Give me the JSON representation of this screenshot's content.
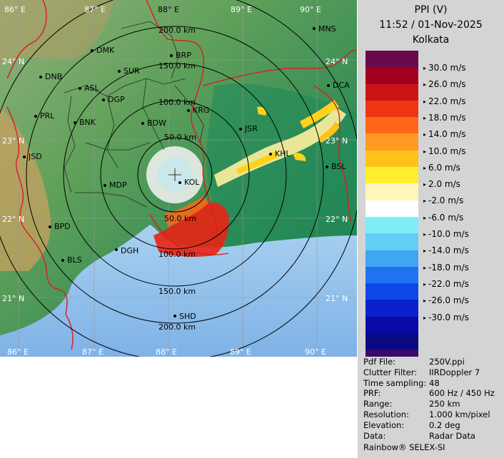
{
  "header": {
    "product": "PPI (V)",
    "datetime": "11:52 / 01-Nov-2025",
    "station": "Kolkata"
  },
  "legend": {
    "colors": [
      "#6a0a4e",
      "#a0001e",
      "#cc1414",
      "#ee3412",
      "#ff6618",
      "#ff9a22",
      "#ffc21a",
      "#ffee30",
      "#fff6b8",
      "#ffffff",
      "#80ecf6",
      "#62cef4",
      "#3ea6f2",
      "#1e74f0",
      "#0c48e6",
      "#0a20cc",
      "#0a0aa8",
      "#070a80",
      "#3a0a6a"
    ],
    "labels": [
      "30.0 m/s",
      "26.0 m/s",
      "22.0 m/s",
      "18.0 m/s",
      "14.0 m/s",
      "10.0 m/s",
      "6.0 m/s",
      "2.0 m/s",
      "-2.0 m/s",
      "-6.0 m/s",
      "-10.0 m/s",
      "-14.0 m/s",
      "-18.0 m/s",
      "-22.0 m/s",
      "-26.0 m/s",
      "-30.0 m/s"
    ]
  },
  "info": [
    {
      "key": "Pdf File:",
      "value": "250V.ppi"
    },
    {
      "key": "Clutter Filter:",
      "value": "IIRDoppler 7"
    },
    {
      "key": "Time sampling:",
      "value": "48"
    },
    {
      "key": "PRF:",
      "value": "600 Hz / 450 Hz"
    },
    {
      "key": "Range:",
      "value": "250 km"
    },
    {
      "key": "Resolution:",
      "value": "1.000 km/pixel"
    },
    {
      "key": "Elevation:",
      "value": "0.2 deg"
    },
    {
      "key": "Data:",
      "value": "Radar Data"
    }
  ],
  "brand": "Rainbow® SELEX-SI",
  "map": {
    "lon_labels": [
      "86° E",
      "87° E",
      "88° E",
      "89° E",
      "90° E"
    ],
    "lat_labels": [
      "24° N",
      "23° N",
      "22° N",
      "21° N"
    ],
    "range_rings": [
      "50.0 km",
      "100.0 km",
      "150.0 km",
      "200.0 km"
    ],
    "stations": [
      "MNS",
      "DMK",
      "BRP",
      "DNB",
      "SUR",
      "ASL",
      "DGP",
      "PRL",
      "BNK",
      "BDW",
      "KRG",
      "JSR",
      "DCA",
      "JSD",
      "KHL",
      "BSL",
      "MDP",
      "KOL",
      "BPD",
      "DGH",
      "BLS",
      "SHD"
    ]
  }
}
